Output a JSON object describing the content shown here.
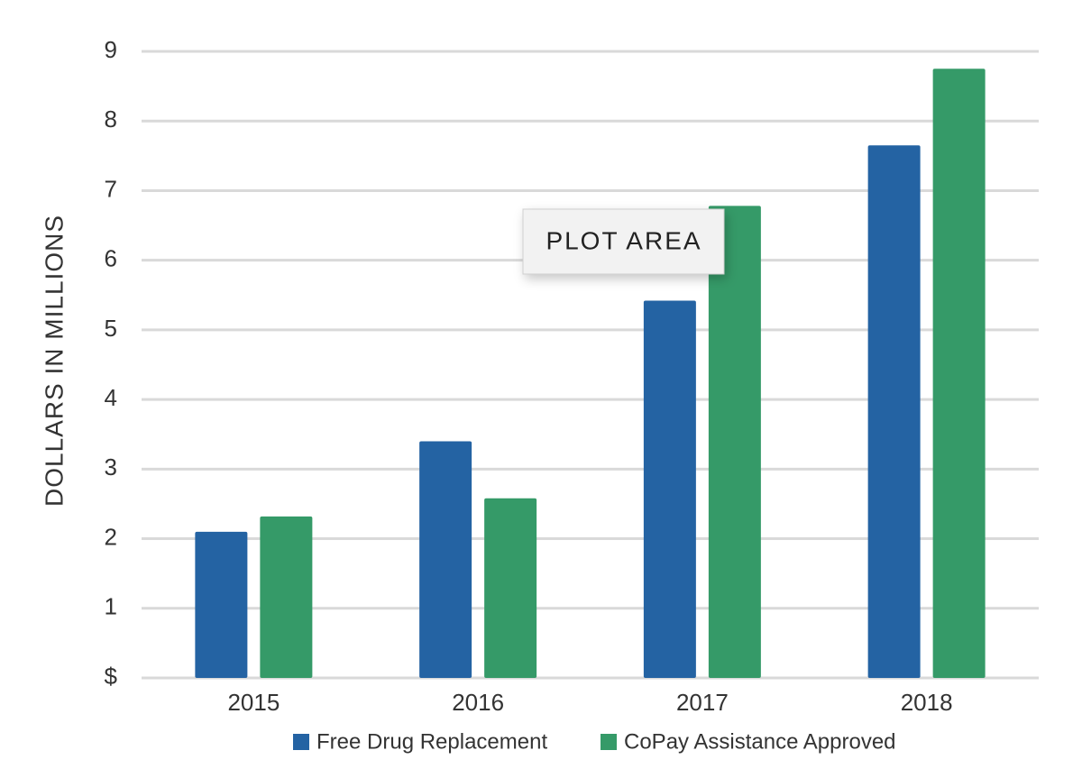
{
  "chart_data": {
    "type": "bar",
    "categories": [
      "2015",
      "2016",
      "2017",
      "2018"
    ],
    "series": [
      {
        "name": "Free Drug Replacement",
        "color": "#2463a3",
        "values": [
          2.1,
          3.4,
          5.42,
          7.65
        ]
      },
      {
        "name": "CoPay Assistance Approved",
        "color": "#359a68",
        "values": [
          2.32,
          2.58,
          6.78,
          8.75
        ]
      }
    ],
    "ylabel": "DOLLARS IN MILLIONS",
    "ylim": [
      0,
      9
    ],
    "yticks": [
      {
        "value": 0,
        "label": "$"
      },
      {
        "value": 1,
        "label": "1"
      },
      {
        "value": 2,
        "label": "2"
      },
      {
        "value": 3,
        "label": "3"
      },
      {
        "value": 4,
        "label": "4"
      },
      {
        "value": 5,
        "label": "5"
      },
      {
        "value": 6,
        "label": "6"
      },
      {
        "value": 7,
        "label": "7"
      },
      {
        "value": 8,
        "label": "8"
      },
      {
        "value": 9,
        "label": "9"
      }
    ],
    "grid": true,
    "legend": "bottom",
    "annotation": "PLOT AREA"
  }
}
